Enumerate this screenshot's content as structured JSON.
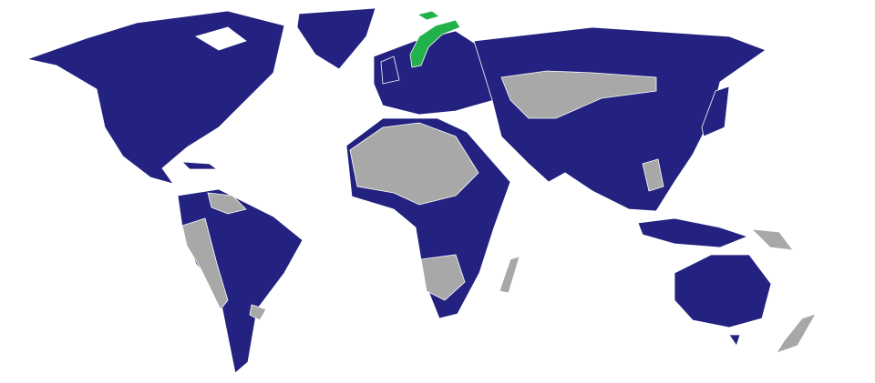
{
  "map": {
    "colors": {
      "background": "#ffffff",
      "member": "#232280",
      "non_member": "#a8a8a8",
      "highlight": "#22b24c",
      "border": "#ffffff"
    }
  }
}
